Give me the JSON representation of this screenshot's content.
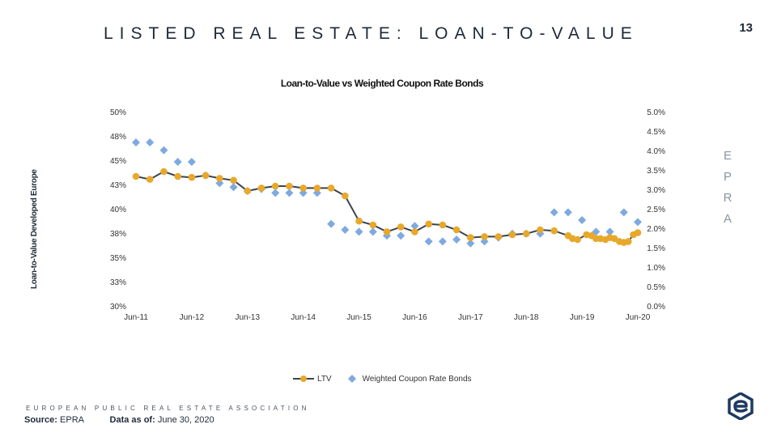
{
  "page": {
    "title": "LISTED REAL ESTATE: LOAN-TO-VALUE",
    "number": "13",
    "side_letters": [
      "E",
      "P",
      "R",
      "A"
    ],
    "association": "EUROPEAN PUBLIC REAL ESTATE ASSOCIATION",
    "source_label": "Source:",
    "source_value": "EPRA",
    "asof_label": "Data as of:",
    "asof_value": "June 30, 2020"
  },
  "colors": {
    "ltv": "#e8a82a",
    "ltv_line": "#3a4452",
    "bonds": "#7ea9e1",
    "logo": "#1e3a5f"
  },
  "chart_data": {
    "type": "line",
    "title": "Loan-to-Value vs Weighted Coupon Rate Bonds",
    "ylabel": "Loan-to-Value Developed Europe",
    "ylabel_right": "",
    "ylim": [
      30,
      50
    ],
    "ylim_right": [
      0,
      5
    ],
    "y_ticks": [
      "50%",
      "48%",
      "45%",
      "43%",
      "40%",
      "38%",
      "35%",
      "33%",
      "30%"
    ],
    "y_ticks_right": [
      "5.0%",
      "4.5%",
      "4.0%",
      "3.5%",
      "3.0%",
      "2.5%",
      "2.0%",
      "1.5%",
      "1.0%",
      "0.5%",
      "0.0%"
    ],
    "x_ticks": [
      "Jun-11",
      "Jun-12",
      "Jun-13",
      "Jun-14",
      "Jun-15",
      "Jun-16",
      "Jun-17",
      "Jun-18",
      "Jun-19",
      "Jun-20"
    ],
    "xlim": [
      2011.25,
      2020.5
    ],
    "legend": [
      "LTV",
      "Weighted Coupon Rate Bonds"
    ],
    "series": [
      {
        "name": "LTV",
        "axis": "left",
        "points": [
          [
            2011.5,
            43.5
          ],
          [
            2011.75,
            43.2
          ],
          [
            2012.0,
            44.0
          ],
          [
            2012.25,
            43.5
          ],
          [
            2012.5,
            43.4
          ],
          [
            2012.75,
            43.6
          ],
          [
            2013.0,
            43.3
          ],
          [
            2013.25,
            43.1
          ],
          [
            2013.5,
            42.0
          ],
          [
            2013.75,
            42.3
          ],
          [
            2014.0,
            42.5
          ],
          [
            2014.25,
            42.5
          ],
          [
            2014.5,
            42.3
          ],
          [
            2014.75,
            42.3
          ],
          [
            2015.0,
            42.3
          ],
          [
            2015.25,
            41.5
          ],
          [
            2015.5,
            38.9
          ],
          [
            2015.75,
            38.5
          ],
          [
            2016.0,
            37.8
          ],
          [
            2016.25,
            38.3
          ],
          [
            2016.5,
            37.8
          ],
          [
            2016.75,
            38.6
          ],
          [
            2017.0,
            38.5
          ],
          [
            2017.25,
            38.0
          ],
          [
            2017.5,
            37.2
          ],
          [
            2017.75,
            37.3
          ],
          [
            2018.0,
            37.3
          ],
          [
            2018.25,
            37.5
          ],
          [
            2018.5,
            37.6
          ],
          [
            2018.75,
            38.0
          ],
          [
            2019.0,
            37.9
          ],
          [
            2019.25,
            37.4
          ],
          [
            2019.33,
            37.1
          ],
          [
            2019.42,
            37.0
          ],
          [
            2019.58,
            37.5
          ],
          [
            2019.67,
            37.4
          ],
          [
            2019.75,
            37.1
          ],
          [
            2019.83,
            37.1
          ],
          [
            2019.92,
            37.0
          ],
          [
            2020.0,
            37.2
          ],
          [
            2020.08,
            37.1
          ],
          [
            2020.17,
            36.8
          ],
          [
            2020.25,
            36.7
          ],
          [
            2020.33,
            36.8
          ],
          [
            2020.42,
            37.5
          ],
          [
            2020.5,
            37.7
          ]
        ]
      },
      {
        "name": "Weighted Coupon Rate Bonds",
        "axis": "right",
        "points": [
          [
            2011.5,
            4.25
          ],
          [
            2011.75,
            4.25
          ],
          [
            2012.0,
            4.05
          ],
          [
            2012.25,
            3.75
          ],
          [
            2012.5,
            3.75
          ],
          [
            2012.75,
            3.4
          ],
          [
            2013.0,
            3.2
          ],
          [
            2013.25,
            3.1
          ],
          [
            2013.5,
            3.0
          ],
          [
            2013.75,
            3.05
          ],
          [
            2014.0,
            2.95
          ],
          [
            2014.25,
            2.95
          ],
          [
            2014.5,
            2.95
          ],
          [
            2014.75,
            2.95
          ],
          [
            2015.0,
            2.15
          ],
          [
            2015.25,
            2.0
          ],
          [
            2015.5,
            1.95
          ],
          [
            2015.75,
            1.95
          ],
          [
            2016.0,
            1.85
          ],
          [
            2016.25,
            1.85
          ],
          [
            2016.5,
            2.1
          ],
          [
            2016.75,
            1.7
          ],
          [
            2017.0,
            1.7
          ],
          [
            2017.25,
            1.75
          ],
          [
            2017.5,
            1.65
          ],
          [
            2017.75,
            1.7
          ],
          [
            2018.0,
            1.8
          ],
          [
            2018.25,
            1.9
          ],
          [
            2018.5,
            1.9
          ],
          [
            2018.75,
            1.9
          ],
          [
            2019.0,
            2.45
          ],
          [
            2019.25,
            2.45
          ],
          [
            2019.5,
            2.25
          ],
          [
            2019.75,
            1.95
          ],
          [
            2020.0,
            1.95
          ],
          [
            2020.25,
            2.45
          ],
          [
            2020.5,
            2.2
          ]
        ]
      }
    ]
  }
}
